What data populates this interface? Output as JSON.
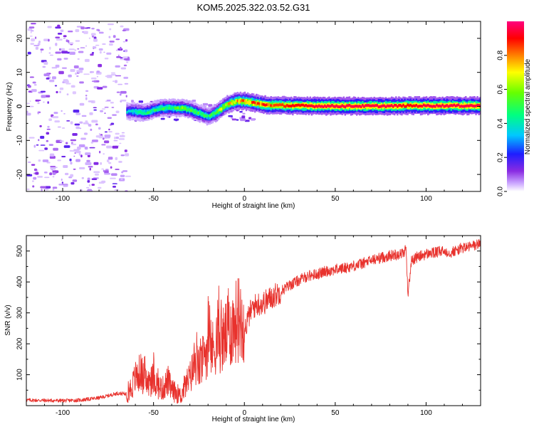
{
  "figure_title": "KOM5.2025.322.03.52.G31",
  "colorbar": {
    "label": "Normalized spectral amplitude",
    "ticks": [
      "0.0",
      "0.2",
      "0.4",
      "0.6",
      "0.8"
    ],
    "tick_values": [
      0.0,
      0.2,
      0.4,
      0.6,
      0.8
    ],
    "range": [
      0,
      1
    ]
  },
  "chart_data": [
    {
      "type": "heatmap",
      "title": "",
      "xlabel": "Height of straight line (km)",
      "ylabel": "Frequency (Hz)",
      "xlim": [
        -120,
        130
      ],
      "ylim": [
        -25,
        25
      ],
      "xticks": [
        -100,
        -50,
        0,
        50,
        100
      ],
      "xtick_labels": [
        "-100",
        "-50",
        "0",
        "50",
        "100"
      ],
      "yticks": [
        -20,
        -10,
        0,
        10,
        20
      ],
      "ytick_labels": [
        "-20",
        "-10",
        "0",
        "10",
        "20"
      ],
      "ridge_trace": {
        "x": [
          -65,
          -60,
          -55,
          -50,
          -45,
          -40,
          -35,
          -30,
          -25,
          -20,
          -15,
          -10,
          -5,
          0,
          5,
          10,
          15,
          20,
          25,
          30,
          40,
          50,
          60,
          70,
          80,
          90,
          100,
          110,
          120,
          130
        ],
        "y": [
          -1.5,
          -1.5,
          -2.0,
          -1.0,
          -0.5,
          -0.5,
          -0.5,
          -1.0,
          -2.0,
          -3.0,
          -1.5,
          0.5,
          1.5,
          1.5,
          1.0,
          0.5,
          0.3,
          0.3,
          0.2,
          0.2,
          0.1,
          0.1,
          0.1,
          0.1,
          0.1,
          0.2,
          0.2,
          0.2,
          0.2,
          0.2
        ],
        "amplitude": [
          0.35,
          0.4,
          0.45,
          0.45,
          0.5,
          0.5,
          0.55,
          0.55,
          0.5,
          0.45,
          0.6,
          0.7,
          0.75,
          0.8,
          0.8,
          0.85,
          0.85,
          0.85,
          0.9,
          0.9,
          0.95,
          0.95,
          0.95,
          0.95,
          0.95,
          0.9,
          0.95,
          0.95,
          0.95,
          0.95
        ]
      },
      "noise_region_x": [
        -120,
        -65
      ]
    },
    {
      "type": "line",
      "title": "",
      "xlabel": "Height of straight line (km)",
      "ylabel": "SNR (v/v)",
      "xlim": [
        -120,
        130
      ],
      "ylim": [
        0,
        550
      ],
      "xticks": [
        -100,
        -50,
        0,
        50,
        100
      ],
      "xtick_labels": [
        "-100",
        "-50",
        "0",
        "50",
        "100"
      ],
      "yticks": [
        100,
        200,
        300,
        400,
        500
      ],
      "ytick_labels": [
        "100",
        "200",
        "300",
        "400",
        "500"
      ],
      "color": "#e8322d",
      "series": [
        {
          "name": "SNR",
          "x": [
            -120,
            -110,
            -100,
            -90,
            -80,
            -75,
            -70,
            -65,
            -62,
            -60,
            -57,
            -55,
            -52,
            -50,
            -47,
            -45,
            -42,
            -40,
            -37,
            -35,
            -33,
            -30,
            -27,
            -25,
            -22,
            -20,
            -17,
            -15,
            -12,
            -10,
            -7,
            -5,
            -2,
            0,
            3,
            5,
            8,
            10,
            15,
            20,
            25,
            30,
            35,
            40,
            45,
            50,
            55,
            60,
            65,
            70,
            75,
            80,
            85,
            88,
            89,
            90,
            92,
            95,
            100,
            105,
            110,
            113,
            115,
            120,
            125,
            130
          ],
          "y": [
            18,
            17,
            16,
            18,
            25,
            32,
            40,
            38,
            60,
            90,
            110,
            80,
            70,
            90,
            60,
            55,
            80,
            50,
            40,
            30,
            60,
            90,
            140,
            120,
            160,
            200,
            180,
            220,
            210,
            230,
            250,
            270,
            290,
            240,
            300,
            320,
            330,
            330,
            350,
            370,
            390,
            405,
            420,
            425,
            435,
            440,
            445,
            452,
            460,
            470,
            478,
            485,
            490,
            495,
            510,
            360,
            470,
            480,
            490,
            495,
            500,
            495,
            498,
            510,
            515,
            525
          ]
        }
      ]
    }
  ]
}
